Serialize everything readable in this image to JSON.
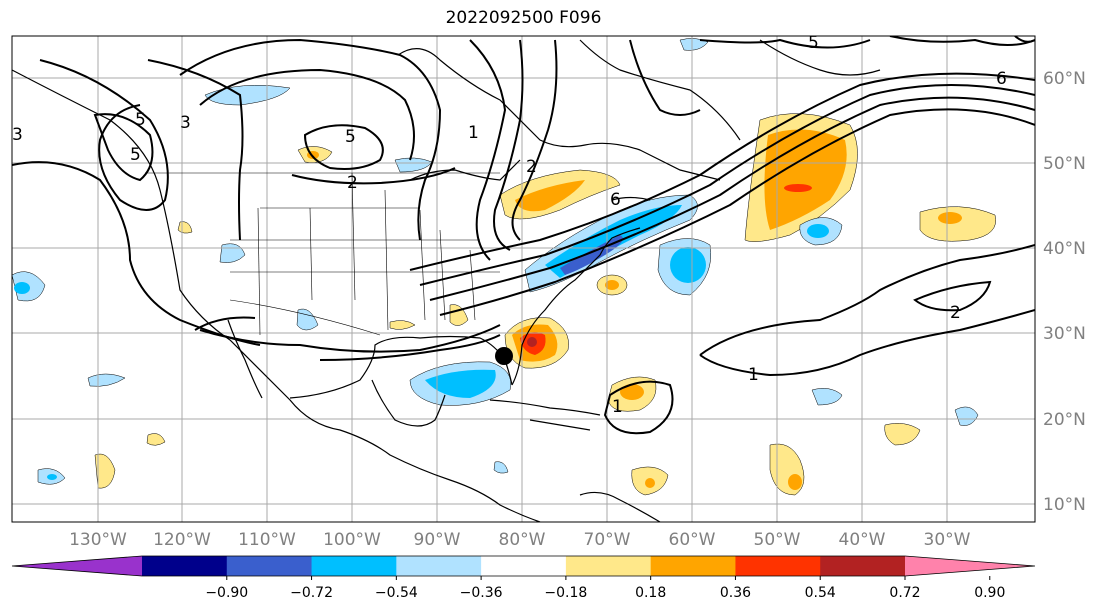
{
  "title": "2022092500 F096",
  "lat_labels": [
    "60°N",
    "50°N",
    "40°N",
    "30°N",
    "20°N",
    "10°N"
  ],
  "lon_labels": [
    "130°W",
    "120°W",
    "110°W",
    "100°W",
    "90°W",
    "80°W",
    "70°W",
    "60°W",
    "50°W",
    "40°W",
    "30°W"
  ],
  "colorbar": {
    "ticks": [
      "−0.90",
      "−0.72",
      "−0.54",
      "−0.36",
      "−0.18",
      "0.18",
      "0.36",
      "0.54",
      "0.72",
      "0.90"
    ],
    "colors": [
      "#9932cc",
      "#00008b",
      "#3a5fcd",
      "#00bfff",
      "#b0e2ff",
      "#ffffff",
      "#ffe88a",
      "#ffa500",
      "#ff3300",
      "#b22222",
      "#ff82ab"
    ]
  },
  "contour_labels": [
    "5",
    "3",
    "5",
    "3",
    "5",
    "2",
    "1",
    "2",
    "5",
    "6",
    "1",
    "2",
    "1",
    "6"
  ]
}
